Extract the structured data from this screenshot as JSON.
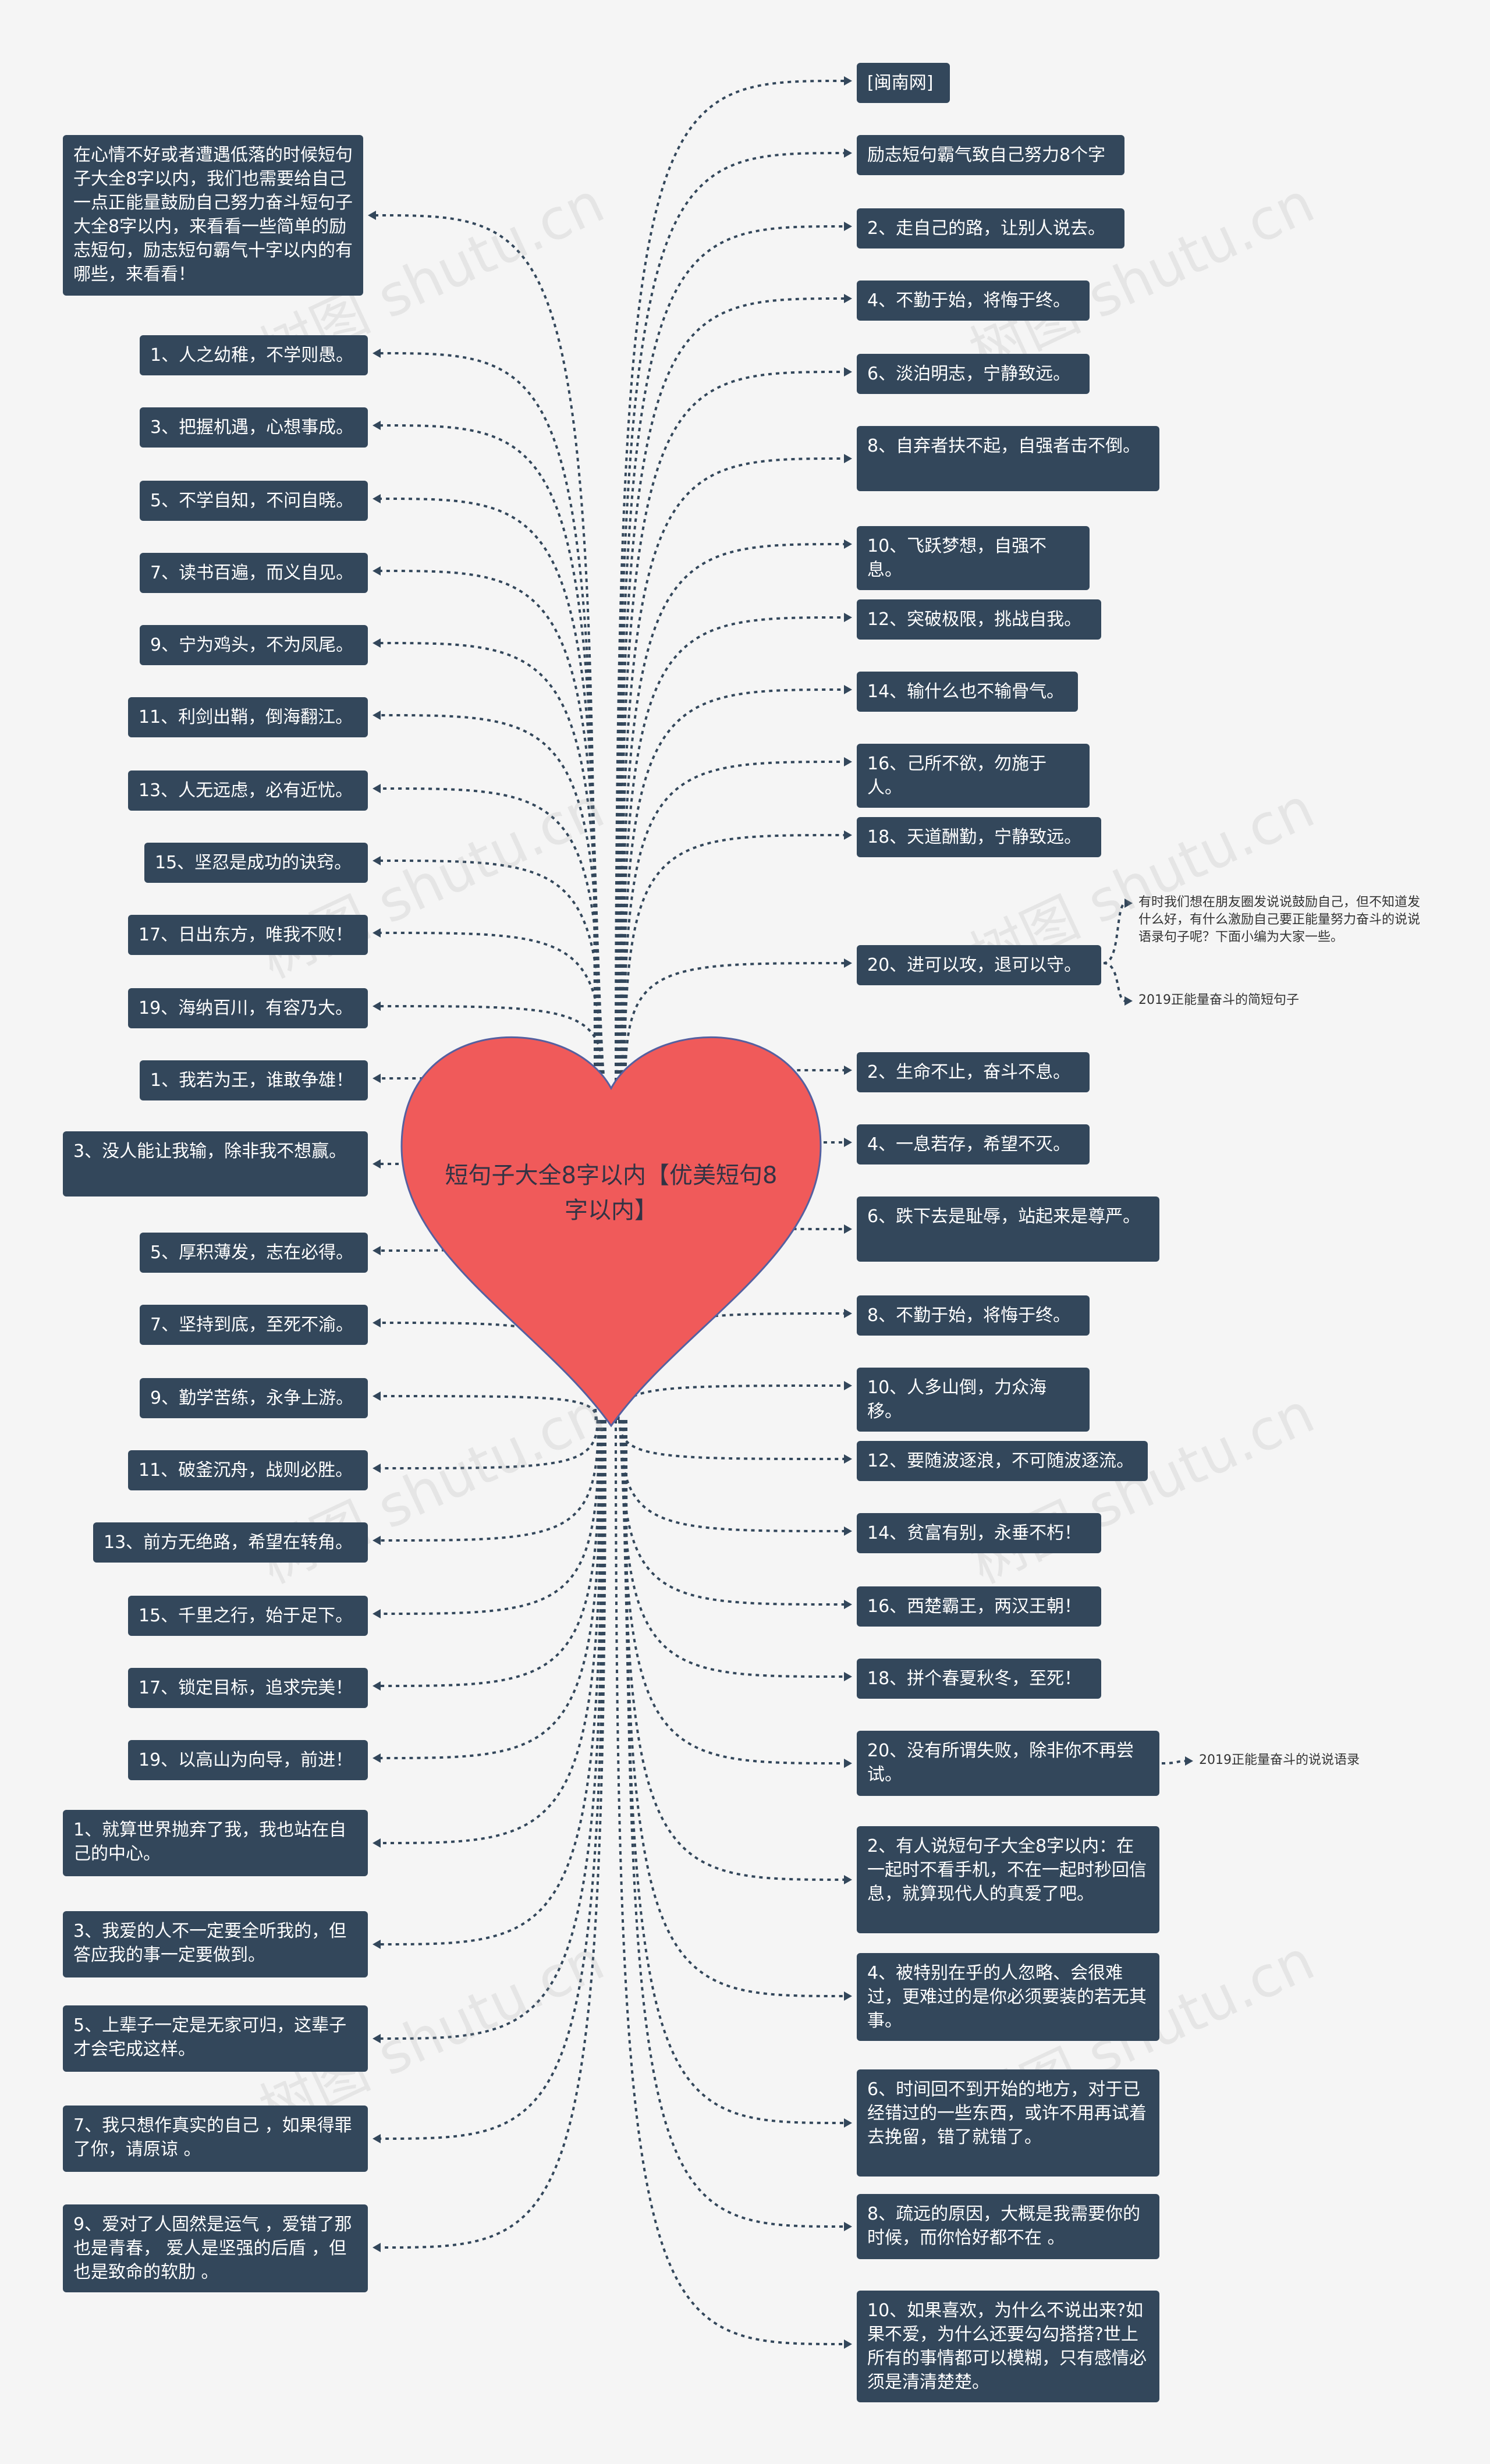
{
  "center": {
    "title": "短句子大全8字以内【优美短句8字以内】",
    "color": "#f05a5a"
  },
  "watermark": "树图 shutu.cn",
  "left_nodes": [
    "在心情不好或者遭遇低落的时候短句子大全8字以内，我们也需要给自己一点正能量鼓励自己努力奋斗短句子大全8字以内，来看看一些简单的励志短句，励志短句霸气十字以内的有哪些，来看看！",
    "1、人之幼稚，不学则愚。",
    "3、把握机遇，心想事成。",
    "5、不学自知，不问自晓。",
    "7、读书百遍，而义自见。",
    "9、宁为鸡头，不为凤尾。",
    "11、利剑出鞘，倒海翻江。",
    "13、人无远虑，必有近忧。",
    "15、坚忍是成功的诀窍。",
    "17、日出东方，唯我不败！",
    "19、海纳百川，有容乃大。",
    "1、我若为王，谁敢争雄！",
    "3、没人能让我输，除非我不想赢。",
    "5、厚积薄发，志在必得。",
    "7、坚持到底，至死不渝。",
    "9、勤学苦练，永争上游。",
    "11、破釜沉舟，战则必胜。",
    "13、前方无绝路，希望在转角。",
    "15、千里之行，始于足下。",
    "17、锁定目标，追求完美！",
    "19、以高山为向导，前进！",
    "1、就算世界抛弃了我，我也站在自己的中心。",
    "3、我爱的人不一定要全听我的，但答应我的事一定要做到。",
    "5、上辈子一定是无家可归，这辈子才会宅成这样。",
    "7、我只想作真实的自己 ，如果得罪了你，请原谅 。",
    "9、爱对了人固然是运气 ，爱错了那也是青春， 爱人是坚强的后盾 ，但也是致命的软肋 。"
  ],
  "right_nodes": [
    "[闽南网]",
    "励志短句霸气致自己努力8个字",
    "2、走自己的路，让别人说去。",
    "4、不勤于始，将悔于终。",
    "6、淡泊明志，宁静致远。",
    "8、自弃者扶不起，自强者击不倒。",
    "10、飞跃梦想，自强不息。",
    "12、突破极限，挑战自我。",
    "14、输什么也不输骨气。",
    "16、己所不欲，勿施于人。",
    "18、天道酬勤，宁静致远。",
    "20、进可以攻，退可以守。",
    "2、生命不止，奋斗不息。",
    "4、一息若存，希望不灭。",
    "6、跌下去是耻辱，站起来是尊严。",
    "8、不勤于始，将悔于终。",
    "10、人多山倒，力众海移。",
    "12、要随波逐浪，不可随波逐流。",
    "14、贫富有别，永垂不朽！",
    "16、西楚霸王，两汉王朝！",
    "18、拼个春夏秋冬，至死！",
    "20、没有所谓失败，除非你不再尝试。",
    "2、有人说短句子大全8字以内：在一起时不看手机，不在一起时秒回信息，就算现代人的真爱了吧。",
    "4、被特别在乎的人忽略、会很难过，更难过的是你必须要装的若无其事。",
    "6、时间回不到开始的地方，对于已经错过的一些东西，或许不用再试着去挽留，错了就错了。",
    "8、疏远的原因，大概是我需要你的时候，而你恰好都不在 。",
    "10、如果喜欢，为什么不说出来?如果不爱，为什么还要勾勾搭搭?世上所有的事情都可以模糊，只有感情必须是清清楚楚。"
  ],
  "notes": [
    "有时我们想在朋友圈发说说鼓励自己，但不知道发什么好，有什么激励自己要正能量努力奋斗的说说语录句子呢？下面小编为大家一些。",
    "2019正能量奋斗的简短句子",
    "2019正能量奋斗的说说语录"
  ]
}
